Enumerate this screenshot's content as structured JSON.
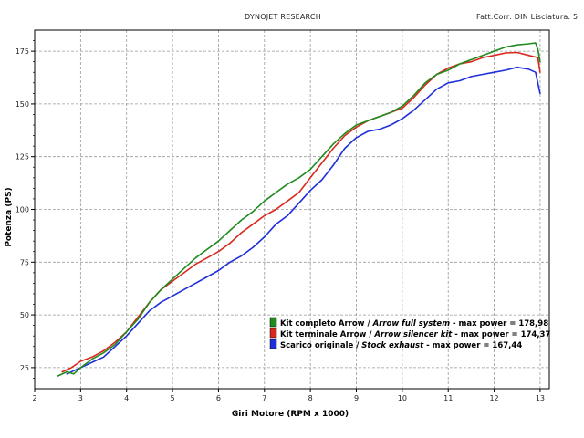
{
  "header": {
    "left": "DYNOJET RESEARCH",
    "right": "Fatt.Corr: DIN  Lisciatura: 5"
  },
  "colors": {
    "background": "#ffffff",
    "grid": "#9a9a9a",
    "axis": "#000000",
    "green": "#1f8b1f",
    "red": "#d9281e",
    "blue": "#1f2fd9"
  },
  "chart_data": {
    "type": "line",
    "xlabel": "Giri Motore (RPM x 1000)",
    "ylabel": "Potenza (PS)",
    "xlim": [
      2,
      13.2
    ],
    "ylim": [
      15,
      185
    ],
    "xticks": [
      2,
      3,
      4,
      5,
      6,
      7,
      8,
      9,
      10,
      11,
      12,
      13
    ],
    "yticks": [
      25,
      50,
      75,
      100,
      125,
      150,
      175
    ],
    "grid": true,
    "legend_position": "bottom-right",
    "series": [
      {
        "name_parts": [
          "Kit completo Arrow / ",
          "Arrow full system",
          " - max power = 178,98"
        ],
        "color": "#1f8b1f",
        "x": [
          2.5,
          2.7,
          2.85,
          3.0,
          3.25,
          3.5,
          3.75,
          4.0,
          4.25,
          4.5,
          4.75,
          5.0,
          5.25,
          5.5,
          5.75,
          6.0,
          6.25,
          6.5,
          6.75,
          7.0,
          7.25,
          7.5,
          7.75,
          8.0,
          8.25,
          8.5,
          8.75,
          9.0,
          9.25,
          9.5,
          9.75,
          10.0,
          10.25,
          10.5,
          10.75,
          11.0,
          11.25,
          11.5,
          11.75,
          12.0,
          12.25,
          12.5,
          12.75,
          12.9,
          12.95,
          13.0
        ],
        "y": [
          21,
          23,
          22,
          25,
          29,
          32,
          36,
          42,
          48,
          56,
          62,
          67,
          72,
          77,
          81,
          85,
          90,
          95,
          99,
          104,
          108,
          112,
          115,
          119,
          125,
          131,
          136,
          140,
          142,
          144,
          146,
          149,
          154,
          160,
          164,
          166,
          169,
          171,
          173,
          175,
          177,
          178,
          178.5,
          178.9,
          176,
          170
        ]
      },
      {
        "name_parts": [
          "Kit terminale Arrow / ",
          "Arrow silencer kit",
          " - max power = 174,37"
        ],
        "color": "#d9281e",
        "x": [
          2.6,
          2.8,
          3.0,
          3.25,
          3.5,
          3.75,
          4.0,
          4.25,
          4.5,
          4.75,
          5.0,
          5.25,
          5.5,
          5.75,
          6.0,
          6.25,
          6.5,
          6.75,
          7.0,
          7.25,
          7.5,
          7.75,
          8.0,
          8.25,
          8.5,
          8.75,
          9.0,
          9.25,
          9.5,
          9.75,
          10.0,
          10.25,
          10.5,
          10.75,
          11.0,
          11.25,
          11.5,
          11.75,
          12.0,
          12.25,
          12.5,
          12.75,
          12.95,
          13.0
        ],
        "y": [
          23,
          25,
          28,
          30,
          33,
          37,
          42,
          49,
          56,
          62,
          66,
          70,
          74,
          77,
          80,
          84,
          89,
          93,
          97,
          100,
          104,
          108,
          115,
          122,
          129,
          135,
          139,
          142,
          144,
          146,
          148,
          153,
          159,
          164,
          167,
          169,
          170,
          172,
          173,
          174.2,
          174.4,
          173,
          172,
          165
        ]
      },
      {
        "name_parts": [
          "Scarico originale / ",
          "Stock exhaust",
          " - max power = 167,44"
        ],
        "color": "#1f2fd9",
        "x": [
          2.7,
          2.9,
          3.1,
          3.3,
          3.5,
          3.75,
          4.0,
          4.25,
          4.5,
          4.75,
          5.0,
          5.25,
          5.5,
          5.75,
          6.0,
          6.25,
          6.5,
          6.75,
          7.0,
          7.25,
          7.5,
          7.75,
          8.0,
          8.25,
          8.5,
          8.75,
          9.0,
          9.25,
          9.5,
          9.75,
          10.0,
          10.25,
          10.5,
          10.75,
          11.0,
          11.25,
          11.5,
          11.75,
          12.0,
          12.25,
          12.5,
          12.75,
          12.9,
          13.0
        ],
        "y": [
          22,
          24,
          26,
          28,
          30,
          35,
          40,
          46,
          52,
          56,
          59,
          62,
          65,
          68,
          71,
          75,
          78,
          82,
          87,
          93,
          97,
          103,
          109,
          114,
          121,
          129,
          134,
          137,
          138,
          140,
          143,
          147,
          152,
          157,
          160,
          161,
          163,
          164,
          165,
          166,
          167.4,
          166.5,
          165,
          155
        ]
      }
    ]
  }
}
